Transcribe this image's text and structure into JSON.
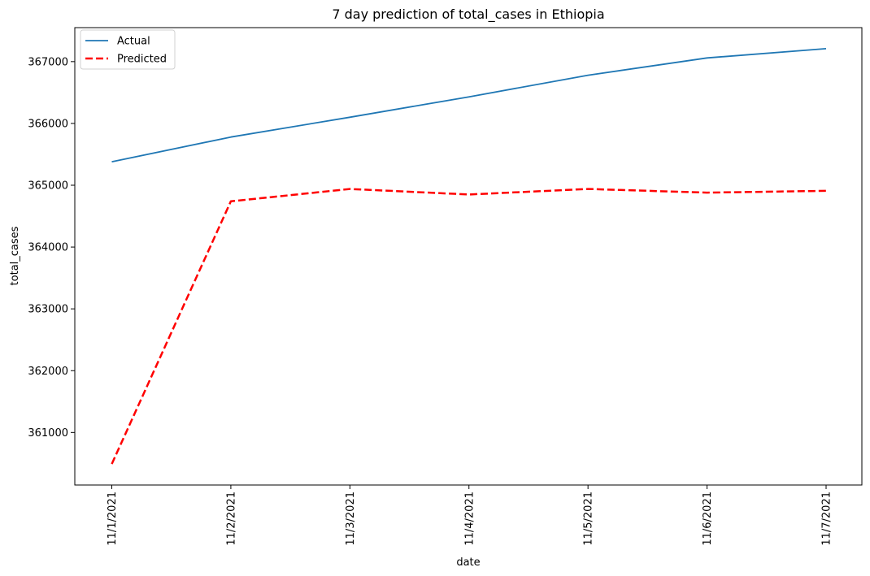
{
  "chart_data": {
    "type": "line",
    "title": "7 day prediction of total_cases in Ethiopia",
    "xlabel": "date",
    "ylabel": "total_cases",
    "categories": [
      "11/1/2021",
      "11/2/2021",
      "11/3/2021",
      "11/4/2021",
      "11/5/2021",
      "11/6/2021",
      "11/7/2021"
    ],
    "ylim": [
      360150,
      367550
    ],
    "yticks": [
      361000,
      362000,
      363000,
      364000,
      365000,
      366000,
      367000
    ],
    "grid": false,
    "legend_position": "top-left",
    "series": [
      {
        "name": "Actual",
        "color": "#1f77b4",
        "style": "solid",
        "values": [
          365380,
          365780,
          366100,
          366430,
          366780,
          367060,
          367210
        ]
      },
      {
        "name": "Predicted",
        "color": "#ff0000",
        "style": "dashed",
        "values": [
          360490,
          364740,
          364940,
          364850,
          364940,
          364880,
          364910
        ]
      }
    ]
  }
}
